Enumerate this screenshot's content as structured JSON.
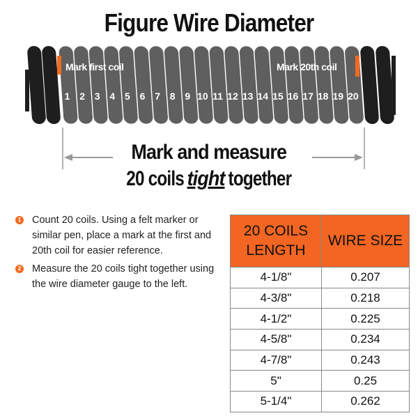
{
  "title": "Figure Wire Diameter",
  "diagram": {
    "mark_first": "Mark first coil",
    "mark_last": "Mark 20th coil",
    "coil_numbers": [
      "1",
      "2",
      "3",
      "4",
      "5",
      "6",
      "7",
      "8",
      "9",
      "10",
      "11",
      "12",
      "13",
      "14",
      "15",
      "16",
      "17",
      "18",
      "19",
      "20"
    ],
    "caption_line1": "Mark and measure",
    "caption_line2_pre": "20 coils ",
    "caption_line2_em": "tight",
    "caption_line2_post": " together",
    "colors": {
      "marked_coil": "#5f5f5f",
      "end_coil": "#1e1e1e",
      "marker": "#f26b21",
      "arrow": "#999999"
    }
  },
  "steps": [
    {
      "num": "1",
      "text": "Count 20 coils. Using a felt marker or similar pen, place a mark at the first and 20th coil for easier reference."
    },
    {
      "num": "2",
      "text": "Measure the 20 coils tight together using the wire diameter gauge to the left."
    }
  ],
  "table": {
    "headers": [
      "20 COILS LENGTH",
      "WIRE SIZE"
    ],
    "header_color": "#f26522",
    "rows": [
      [
        "4-1/8\"",
        "0.207"
      ],
      [
        "4-3/8\"",
        "0.218"
      ],
      [
        "4-1/2\"",
        "0.225"
      ],
      [
        "4-5/8\"",
        "0.234"
      ],
      [
        "4-7/8\"",
        "0.243"
      ],
      [
        "5\"",
        "0.25"
      ],
      [
        "5-1/4\"",
        "0.262"
      ]
    ]
  }
}
